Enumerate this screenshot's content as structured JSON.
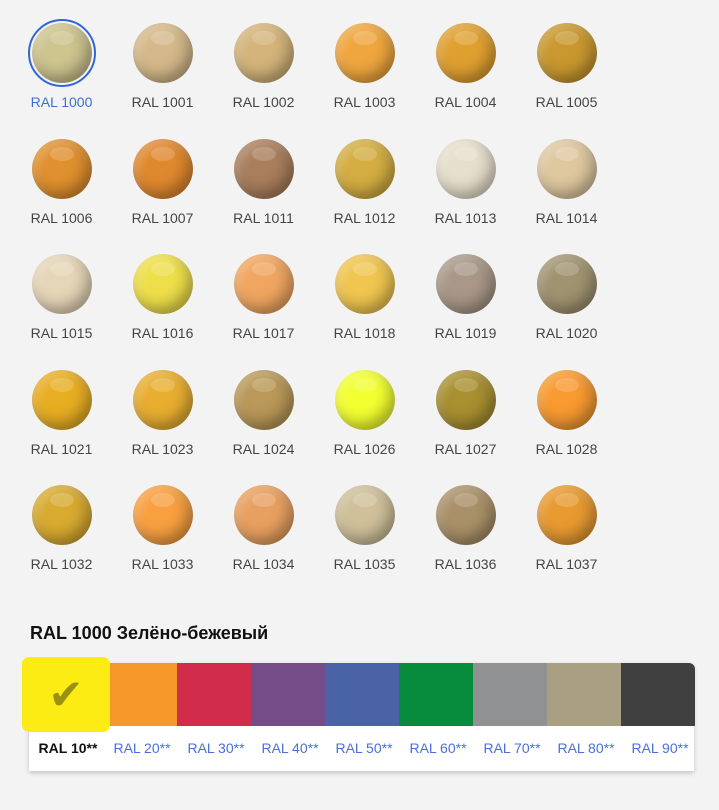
{
  "swatches": [
    {
      "label": "RAL 1000",
      "color": "#cdc48e",
      "selected": true
    },
    {
      "label": "RAL 1001",
      "color": "#d5b98a"
    },
    {
      "label": "RAL 1002",
      "color": "#d4b47a"
    },
    {
      "label": "RAL 1003",
      "color": "#f0a63e"
    },
    {
      "label": "RAL 1004",
      "color": "#e0a030"
    },
    {
      "label": "RAL 1005",
      "color": "#c9982f"
    },
    {
      "label": "RAL 1006",
      "color": "#e0902e"
    },
    {
      "label": "RAL 1007",
      "color": "#e0882e"
    },
    {
      "label": "RAL 1011",
      "color": "#a97e5c"
    },
    {
      "label": "RAL 1012",
      "color": "#d4ae42"
    },
    {
      "label": "RAL 1013",
      "color": "#e6dfcc"
    },
    {
      "label": "RAL 1014",
      "color": "#dfc8a0"
    },
    {
      "label": "RAL 1015",
      "color": "#e6d6b8"
    },
    {
      "label": "RAL 1016",
      "color": "#eedf4a"
    },
    {
      "label": "RAL 1017",
      "color": "#f0a660"
    },
    {
      "label": "RAL 1018",
      "color": "#f0c650"
    },
    {
      "label": "RAL 1019",
      "color": "#a99888"
    },
    {
      "label": "RAL 1020",
      "color": "#a09370"
    },
    {
      "label": "RAL 1021",
      "color": "#e8ae22"
    },
    {
      "label": "RAL 1023",
      "color": "#e8ae30"
    },
    {
      "label": "RAL 1024",
      "color": "#b99858"
    },
    {
      "label": "RAL 1026",
      "color": "#f2ff30"
    },
    {
      "label": "RAL 1027",
      "color": "#a88f30"
    },
    {
      "label": "RAL 1028",
      "color": "#f89a30"
    },
    {
      "label": "RAL 1032",
      "color": "#d8aa30"
    },
    {
      "label": "RAL 1033",
      "color": "#f8a040"
    },
    {
      "label": "RAL 1034",
      "color": "#e8a060"
    },
    {
      "label": "RAL 1035",
      "color": "#cfc09a"
    },
    {
      "label": "RAL 1036",
      "color": "#a99068"
    },
    {
      "label": "RAL 1037",
      "color": "#e89a30"
    }
  ],
  "selected_title": "RAL 1000 Зелёно-бежевый",
  "groups": [
    {
      "label": "RAL 10**",
      "color": "#fdeb14",
      "selected": true
    },
    {
      "label": "RAL 20**",
      "color": "#f7992a"
    },
    {
      "label": "RAL 30**",
      "color": "#d12c4a"
    },
    {
      "label": "RAL 40**",
      "color": "#754c87"
    },
    {
      "label": "RAL 50**",
      "color": "#4a63a6"
    },
    {
      "label": "RAL 60**",
      "color": "#078c3e"
    },
    {
      "label": "RAL 70**",
      "color": "#8f9192"
    },
    {
      "label": "RAL 80**",
      "color": "#a9a083"
    },
    {
      "label": "RAL 90**",
      "color": "#404040"
    }
  ],
  "check_icon": "✔"
}
